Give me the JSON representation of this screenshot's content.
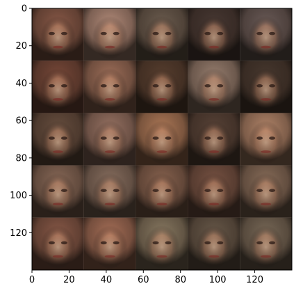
{
  "chart_data": {
    "type": "image_grid",
    "title": "",
    "xlabel": "",
    "ylabel": "",
    "image_width": 140,
    "image_height": 140,
    "xlim": [
      0,
      140
    ],
    "ylim": [
      140,
      0
    ],
    "x_ticks": [
      0,
      20,
      40,
      60,
      80,
      100,
      120
    ],
    "y_ticks": [
      0,
      20,
      40,
      60,
      80,
      100,
      120
    ],
    "grid": false,
    "rows": 5,
    "cols": 5,
    "cells": [
      [
        "#8a5a48",
        "#b48c7a",
        "#6e5e50",
        "#4a3a34",
        "#6c5c58"
      ],
      [
        "#7a4a3a",
        "#a0705a",
        "#5a4030",
        "#9a8070",
        "#4a3a30"
      ],
      [
        "#6a5040",
        "#9a7464",
        "#b07a58",
        "#5a4438",
        "#b4866a"
      ],
      [
        "#8a6a58",
        "#8a7060",
        "#8a6450",
        "#7a5444",
        "#8a6e5a"
      ],
      [
        "#8a5a48",
        "#a87058",
        "#8a7a62",
        "#6a5a4a",
        "#7a6a58"
      ]
    ]
  }
}
